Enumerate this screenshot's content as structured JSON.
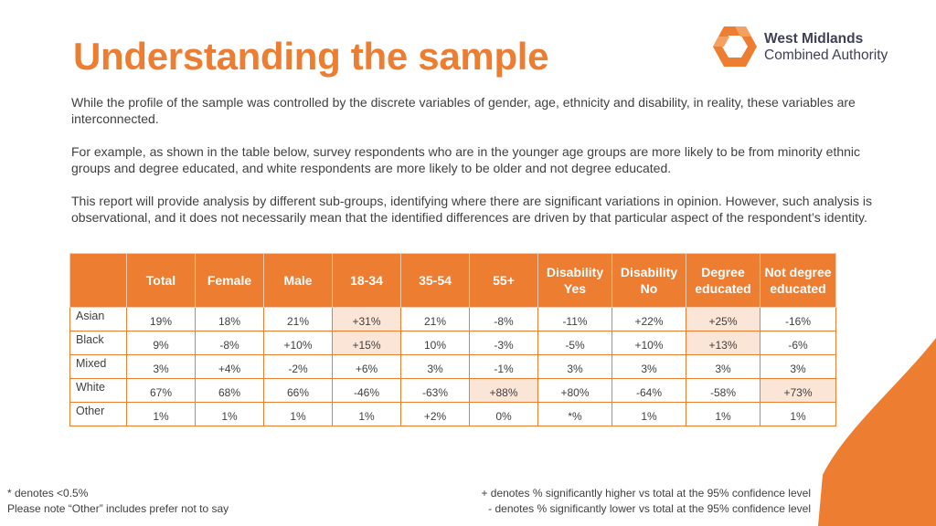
{
  "title": "Understanding the sample",
  "logo": {
    "line1": "West Midlands",
    "line2": "Combined Authority",
    "icon": "wmca-hexagon-logo-icon"
  },
  "paragraphs": [
    "While the profile of the sample was controlled by the discrete variables of gender, age, ethnicity and disability, in reality, these variables are interconnected.",
    "For example, as shown in the table below, survey respondents who are in the younger age groups are more likely to be from minority ethnic groups and degree educated, and white respondents are more likely to be older and not degree educated.",
    "This report will provide analysis by different sub-groups, identifying where there are significant variations in opinion. However, such analysis is observational, and it does not necessarily mean that the identified differences are driven by that particular aspect of the respondent’s identity."
  ],
  "table": {
    "headers": [
      "",
      "Total",
      "Female",
      "Male",
      "18-34",
      "35-54",
      "55+",
      "Disability Yes",
      "Disability No",
      "Degree educated",
      "Not degree educated"
    ],
    "rows": [
      {
        "label": "Asian",
        "cells": [
          "19%",
          "18%",
          "21%",
          "+31%",
          "21%",
          "-8%",
          "-11%",
          "+22%",
          "+25%",
          "-16%"
        ]
      },
      {
        "label": "Black",
        "cells": [
          "9%",
          "-8%",
          "+10%",
          "+15%",
          "10%",
          "-3%",
          "-5%",
          "+10%",
          "+13%",
          "-6%"
        ]
      },
      {
        "label": "Mixed",
        "cells": [
          "3%",
          "+4%",
          "-2%",
          "+6%",
          "3%",
          "-1%",
          "3%",
          "3%",
          "3%",
          "3%"
        ]
      },
      {
        "label": "White",
        "cells": [
          "67%",
          "68%",
          "66%",
          "-46%",
          "-63%",
          "+88%",
          "+80%",
          "-64%",
          "-58%",
          "+73%"
        ]
      },
      {
        "label": "Other",
        "cells": [
          "1%",
          "1%",
          "1%",
          "1%",
          "+2%",
          "0%",
          "*%",
          "1%",
          "1%",
          "1%"
        ]
      }
    ],
    "highlighted": [
      [
        0,
        3
      ],
      [
        0,
        8
      ],
      [
        1,
        3
      ],
      [
        1,
        8
      ],
      [
        3,
        5
      ],
      [
        3,
        9
      ]
    ]
  },
  "notes_left": [
    "* denotes <0.5%",
    "Please note “Other” includes prefer not to say"
  ],
  "notes_right": [
    "+ denotes % significantly higher vs total at the 95% confidence level",
    "- denotes % significantly lower vs total at the 95% confidence level"
  ],
  "colors": {
    "accent": "#ED7D31",
    "highlight": "#FBE5D6",
    "logo_text": "#3f3f58"
  }
}
